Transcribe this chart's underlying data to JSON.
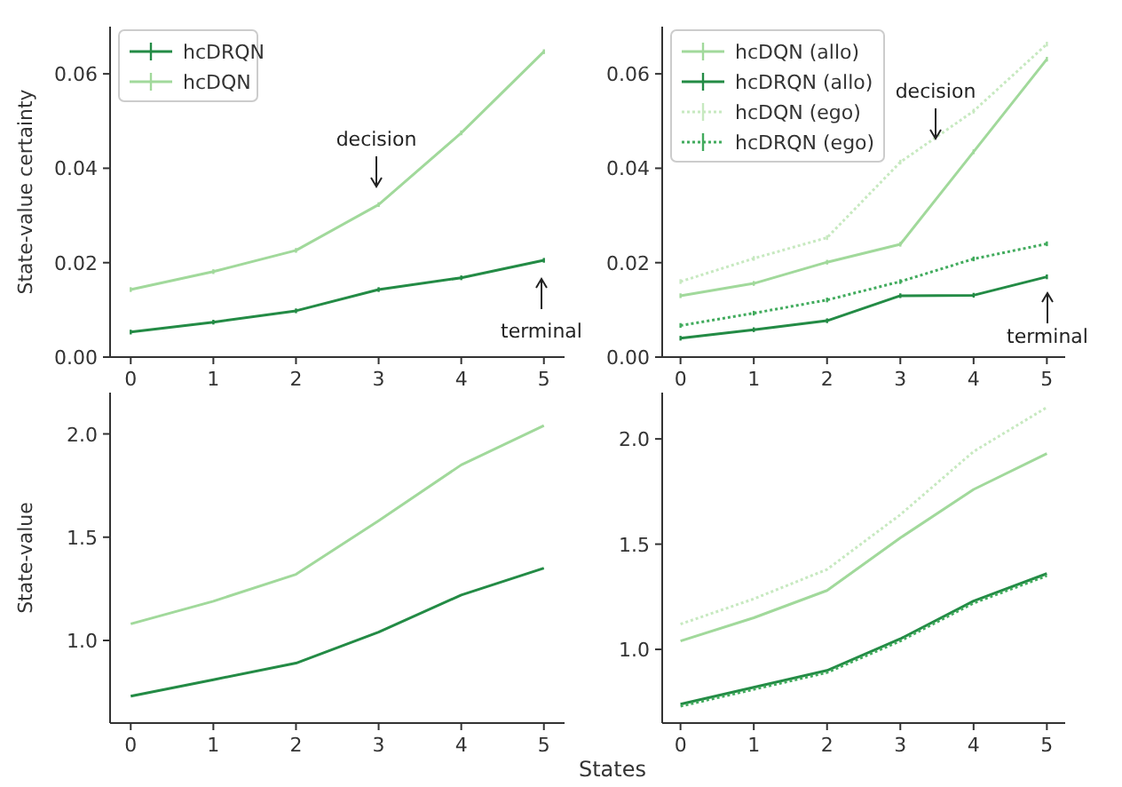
{
  "chart_data": [
    {
      "type": "line",
      "ylabel": "State-value certainty",
      "xlim": [
        -0.25,
        5.25
      ],
      "xticks": [
        0,
        1,
        2,
        3,
        4,
        5
      ],
      "ylim": [
        0,
        0.07
      ],
      "yticks": [
        {
          "value": 0,
          "label": "0.00"
        },
        {
          "value": 0.02,
          "label": "0.02"
        },
        {
          "value": 0.04,
          "label": "0.04"
        },
        {
          "value": 0.06,
          "label": "0.06"
        }
      ],
      "legend": "top left",
      "x": [
        0,
        1,
        2,
        3,
        4,
        5
      ],
      "series": [
        {
          "name": "hcDRQN",
          "color": "#238b45",
          "line_style": "solid",
          "values": [
            0.0053,
            0.0074,
            0.0098,
            0.0143,
            0.0168,
            0.0205
          ],
          "errors": [
            0.0005,
            0.0005,
            0.0005,
            0.0005,
            0.0005,
            0.0005
          ]
        },
        {
          "name": "hcDQN",
          "color": "#a1d99b",
          "line_style": "solid",
          "values": [
            0.0143,
            0.0181,
            0.0226,
            0.0323,
            0.0475,
            0.0647
          ],
          "errors": [
            0.0005,
            0.0005,
            0.0005,
            0.0005,
            0.0005,
            0.0005
          ]
        }
      ],
      "annotations": [
        "decision",
        "terminal"
      ]
    },
    {
      "type": "line",
      "xlim": [
        -0.25,
        5.25
      ],
      "xticks": [
        0,
        1,
        2,
        3,
        4,
        5
      ],
      "ylim": [
        0,
        0.07
      ],
      "yticks": [
        {
          "value": 0,
          "label": "0.00"
        },
        {
          "value": 0.02,
          "label": "0.02"
        },
        {
          "value": 0.04,
          "label": "0.04"
        },
        {
          "value": 0.06,
          "label": "0.06"
        }
      ],
      "legend": "top left",
      "x": [
        0,
        1,
        2,
        3,
        4,
        5
      ],
      "series": [
        {
          "name": "hcDQN (allo)",
          "color": "#a1d99b",
          "line_style": "solid",
          "values": [
            0.013,
            0.0156,
            0.0201,
            0.0239,
            0.0435,
            0.0631
          ],
          "errors": [
            0.0005,
            0.0005,
            0.0005,
            0.0005,
            0.0005,
            0.0005
          ]
        },
        {
          "name": "hcDRQN (allo)",
          "color": "#238b45",
          "line_style": "solid",
          "values": [
            0.004,
            0.0058,
            0.0077,
            0.013,
            0.0131,
            0.017
          ],
          "errors": [
            0.0005,
            0.0005,
            0.0005,
            0.0005,
            0.0005,
            0.0005
          ]
        },
        {
          "name": "hcDQN (ego)",
          "color": "#c7e9c0",
          "line_style": "dotted",
          "values": [
            0.016,
            0.0209,
            0.0253,
            0.0413,
            0.0521,
            0.0663
          ],
          "errors": [
            0.0005,
            0.0005,
            0.0005,
            0.0005,
            0.0005,
            0.0005
          ]
        },
        {
          "name": "hcDRQN (ego)",
          "color": "#41ab5d",
          "line_style": "dotted",
          "values": [
            0.0067,
            0.0093,
            0.0121,
            0.016,
            0.0208,
            0.024
          ],
          "errors": [
            0.0005,
            0.0005,
            0.0005,
            0.0005,
            0.0005,
            0.0005
          ]
        }
      ],
      "annotations": [
        "decision",
        "terminal"
      ]
    },
    {
      "type": "line",
      "ylabel": "State-value",
      "xlabel": "States",
      "xlim": [
        -0.25,
        5.25
      ],
      "xticks": [
        0,
        1,
        2,
        3,
        4,
        5
      ],
      "ylim": [
        0.6,
        2.2
      ],
      "yticks": [
        {
          "value": 1,
          "label": "1.0"
        },
        {
          "value": 1.5,
          "label": "1.5"
        },
        {
          "value": 2,
          "label": "2.0"
        }
      ],
      "x": [
        0,
        1,
        2,
        3,
        4,
        5
      ],
      "series": [
        {
          "color": "#238b45",
          "line_style": "solid",
          "values": [
            0.73,
            0.81,
            0.89,
            1.04,
            1.22,
            1.35
          ]
        },
        {
          "color": "#a1d99b",
          "line_style": "solid",
          "values": [
            1.08,
            1.19,
            1.32,
            1.58,
            1.85,
            2.04
          ]
        }
      ]
    },
    {
      "type": "line",
      "xlim": [
        -0.25,
        5.25
      ],
      "xticks": [
        0,
        1,
        2,
        3,
        4,
        5
      ],
      "ylim": [
        0.65,
        2.22
      ],
      "yticks": [
        {
          "value": 1,
          "label": "1.0"
        },
        {
          "value": 1.5,
          "label": "1.5"
        },
        {
          "value": 2,
          "label": "2.0"
        }
      ],
      "x": [
        0,
        1,
        2,
        3,
        4,
        5
      ],
      "series": [
        {
          "color": "#a1d99b",
          "line_style": "solid",
          "values": [
            1.04,
            1.15,
            1.28,
            1.53,
            1.76,
            1.93
          ]
        },
        {
          "color": "#238b45",
          "line_style": "solid",
          "values": [
            0.74,
            0.82,
            0.9,
            1.05,
            1.23,
            1.36
          ]
        },
        {
          "color": "#c7e9c0",
          "line_style": "dotted",
          "values": [
            1.12,
            1.24,
            1.38,
            1.64,
            1.94,
            2.15
          ]
        },
        {
          "color": "#41ab5d",
          "line_style": "dotted",
          "values": [
            0.73,
            0.81,
            0.89,
            1.04,
            1.22,
            1.35
          ]
        }
      ]
    }
  ]
}
